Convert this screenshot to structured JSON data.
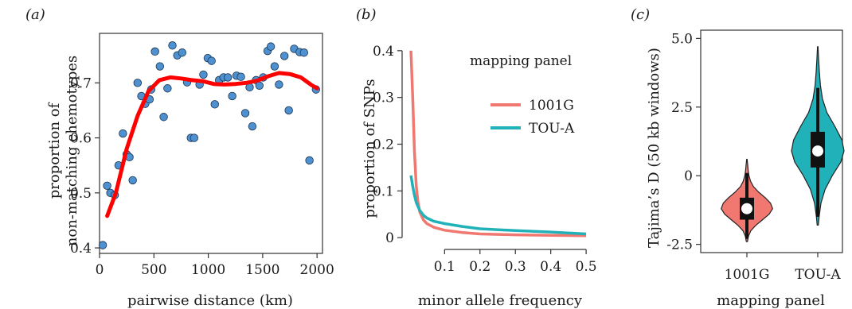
{
  "chart_data": [
    {
      "type": "scatter",
      "panel_label": "(a)",
      "xlabel": "pairwise distance (km)",
      "ylabel_lines": [
        "proportion of",
        "non-matching chemotypes"
      ],
      "xlim": [
        0,
        2050
      ],
      "ylim": [
        0.39,
        0.79
      ],
      "xticks": [
        0,
        500,
        1000,
        1500,
        2000
      ],
      "yticks": [
        0.4,
        0.5,
        0.6,
        0.7
      ],
      "point_color": "#4f90d0",
      "fit_color": "#ff0000",
      "points": [
        [
          30,
          0.405
        ],
        [
          70,
          0.513
        ],
        [
          100,
          0.5
        ],
        [
          140,
          0.496
        ],
        [
          175,
          0.55
        ],
        [
          215,
          0.608
        ],
        [
          250,
          0.57
        ],
        [
          275,
          0.565
        ],
        [
          305,
          0.523
        ],
        [
          350,
          0.7
        ],
        [
          385,
          0.676
        ],
        [
          420,
          0.662
        ],
        [
          460,
          0.67
        ],
        [
          475,
          0.688
        ],
        [
          510,
          0.757
        ],
        [
          555,
          0.73
        ],
        [
          590,
          0.638
        ],
        [
          625,
          0.69
        ],
        [
          670,
          0.768
        ],
        [
          715,
          0.75
        ],
        [
          760,
          0.755
        ],
        [
          805,
          0.701
        ],
        [
          840,
          0.6
        ],
        [
          870,
          0.6
        ],
        [
          920,
          0.697
        ],
        [
          955,
          0.715
        ],
        [
          995,
          0.745
        ],
        [
          1030,
          0.74
        ],
        [
          1060,
          0.661
        ],
        [
          1100,
          0.705
        ],
        [
          1140,
          0.71
        ],
        [
          1180,
          0.71
        ],
        [
          1220,
          0.676
        ],
        [
          1260,
          0.713
        ],
        [
          1300,
          0.711
        ],
        [
          1340,
          0.645
        ],
        [
          1380,
          0.692
        ],
        [
          1405,
          0.621
        ],
        [
          1440,
          0.705
        ],
        [
          1470,
          0.695
        ],
        [
          1505,
          0.71
        ],
        [
          1545,
          0.758
        ],
        [
          1575,
          0.766
        ],
        [
          1610,
          0.73
        ],
        [
          1650,
          0.697
        ],
        [
          1700,
          0.749
        ],
        [
          1740,
          0.65
        ],
        [
          1790,
          0.762
        ],
        [
          1840,
          0.756
        ],
        [
          1880,
          0.755
        ],
        [
          1930,
          0.559
        ],
        [
          1990,
          0.688
        ]
      ],
      "fit_curve": [
        [
          70,
          0.458
        ],
        [
          150,
          0.5
        ],
        [
          250,
          0.58
        ],
        [
          350,
          0.64
        ],
        [
          450,
          0.685
        ],
        [
          550,
          0.705
        ],
        [
          650,
          0.71
        ],
        [
          750,
          0.708
        ],
        [
          850,
          0.705
        ],
        [
          950,
          0.703
        ],
        [
          1050,
          0.698
        ],
        [
          1150,
          0.697
        ],
        [
          1250,
          0.698
        ],
        [
          1350,
          0.7
        ],
        [
          1450,
          0.704
        ],
        [
          1550,
          0.712
        ],
        [
          1650,
          0.718
        ],
        [
          1750,
          0.716
        ],
        [
          1850,
          0.71
        ],
        [
          1950,
          0.696
        ],
        [
          2000,
          0.69
        ]
      ]
    },
    {
      "type": "line",
      "panel_label": "(b)",
      "xlabel": "minor allele frequency",
      "ylabel": "proportion of SNPs",
      "xlim": [
        -0.02,
        0.52
      ],
      "ylim": [
        -0.015,
        0.415
      ],
      "xticks": [
        0.1,
        0.2,
        0.3,
        0.4,
        0.5
      ],
      "yticks": [
        0,
        0.1,
        0.2,
        0.3,
        0.4
      ],
      "legend_title": "mapping panel",
      "legend_position": "top-right",
      "series": [
        {
          "name": "1001G",
          "color": "#f07870",
          "points": [
            [
              0.005,
              0.4
            ],
            [
              0.01,
              0.3
            ],
            [
              0.015,
              0.18
            ],
            [
              0.02,
              0.11
            ],
            [
              0.025,
              0.075
            ],
            [
              0.03,
              0.055
            ],
            [
              0.04,
              0.038
            ],
            [
              0.05,
              0.03
            ],
            [
              0.07,
              0.022
            ],
            [
              0.1,
              0.016
            ],
            [
              0.15,
              0.011
            ],
            [
              0.2,
              0.008
            ],
            [
              0.3,
              0.006
            ],
            [
              0.4,
              0.005
            ],
            [
              0.5,
              0.004
            ]
          ]
        },
        {
          "name": "TOU-A",
          "color": "#20b2b8",
          "points": [
            [
              0.005,
              0.133
            ],
            [
              0.01,
              0.11
            ],
            [
              0.015,
              0.09
            ],
            [
              0.02,
              0.075
            ],
            [
              0.03,
              0.058
            ],
            [
              0.04,
              0.048
            ],
            [
              0.05,
              0.042
            ],
            [
              0.07,
              0.035
            ],
            [
              0.1,
              0.03
            ],
            [
              0.15,
              0.024
            ],
            [
              0.2,
              0.019
            ],
            [
              0.3,
              0.015
            ],
            [
              0.4,
              0.012
            ],
            [
              0.5,
              0.008
            ]
          ]
        }
      ]
    },
    {
      "type": "violin",
      "panel_label": "(c)",
      "xlabel": "mapping panel",
      "ylabel": "Tajima’s D (50 kb windows)",
      "ylim": [
        -2.8,
        5.3
      ],
      "yticks": [
        "-2.5",
        "0",
        "2.5",
        "5.0"
      ],
      "categories": [
        "1001G",
        "TOU-A"
      ],
      "groups": [
        {
          "name": "1001G",
          "color": "#f07870",
          "min": -2.4,
          "q1": -1.6,
          "median": -1.2,
          "q3": -0.8,
          "max": 0.6,
          "whisker": [
            -2.3,
            0.1
          ],
          "density": [
            [
              -2.4,
              0.02
            ],
            [
              -2.2,
              0.06
            ],
            [
              -2.0,
              0.15
            ],
            [
              -1.8,
              0.35
            ],
            [
              -1.6,
              0.6
            ],
            [
              -1.4,
              0.85
            ],
            [
              -1.2,
              0.98
            ],
            [
              -1.0,
              0.9
            ],
            [
              -0.8,
              0.7
            ],
            [
              -0.6,
              0.45
            ],
            [
              -0.4,
              0.25
            ],
            [
              -0.2,
              0.14
            ],
            [
              0.0,
              0.08
            ],
            [
              0.2,
              0.05
            ],
            [
              0.4,
              0.03
            ],
            [
              0.6,
              0.01
            ]
          ]
        },
        {
          "name": "TOU-A",
          "color": "#20b2b8",
          "min": -1.8,
          "q1": 0.3,
          "median": 0.9,
          "q3": 1.6,
          "max": 4.7,
          "whisker": [
            -1.5,
            3.2
          ],
          "density": [
            [
              -1.8,
              0.02
            ],
            [
              -1.5,
              0.05
            ],
            [
              -1.0,
              0.12
            ],
            [
              -0.5,
              0.28
            ],
            [
              0.0,
              0.55
            ],
            [
              0.5,
              0.88
            ],
            [
              0.9,
              1.0
            ],
            [
              1.3,
              0.92
            ],
            [
              1.8,
              0.65
            ],
            [
              2.3,
              0.35
            ],
            [
              2.8,
              0.18
            ],
            [
              3.3,
              0.1
            ],
            [
              3.8,
              0.06
            ],
            [
              4.3,
              0.03
            ],
            [
              4.7,
              0.01
            ]
          ]
        }
      ]
    }
  ]
}
